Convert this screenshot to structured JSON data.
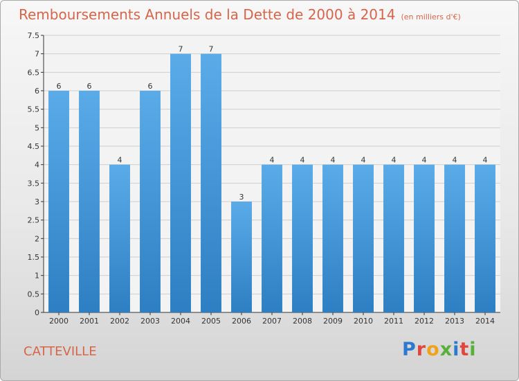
{
  "title": "Remboursements Annuels de la Dette de 2000 à 2014",
  "unit_note": "(en milliers d'€)",
  "commune": "CATTEVILLE",
  "logo_text": [
    "P",
    "r",
    "o",
    "x",
    "i",
    "t",
    "i"
  ],
  "colors": {
    "bar_top": "#5aabe8",
    "bar_bottom": "#2d7fc3",
    "title": "#d6654a"
  },
  "chart_data": {
    "type": "bar",
    "categories": [
      "2000",
      "2001",
      "2002",
      "2003",
      "2004",
      "2005",
      "2006",
      "2007",
      "2008",
      "2009",
      "2010",
      "2011",
      "2012",
      "2013",
      "2014"
    ],
    "values": [
      6,
      6,
      4,
      6,
      7,
      7,
      3,
      4,
      4,
      4,
      4,
      4,
      4,
      4,
      4
    ],
    "data_labels": [
      "6",
      "6",
      "4",
      "6",
      "7",
      "7",
      "3",
      "4",
      "4",
      "4",
      "4",
      "4",
      "4",
      "4",
      "4"
    ],
    "y_ticks": [
      "0",
      "0.5",
      "1",
      "1.5",
      "2",
      "2.5",
      "3",
      "3.5",
      "4",
      "4.5",
      "5",
      "5.5",
      "6",
      "6.5",
      "7",
      "7.5"
    ],
    "ylim": [
      0,
      7.5
    ],
    "grid": true
  }
}
